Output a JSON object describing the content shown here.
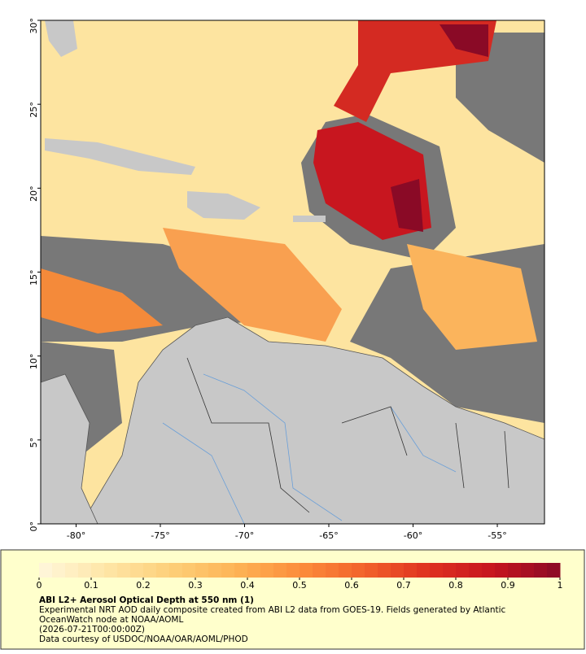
{
  "map": {
    "lon_lim": [
      -82.1,
      -52.2
    ],
    "lat_lim": [
      0,
      30
    ],
    "lon_ticks": [
      {
        "value": -80,
        "label": "-80°"
      },
      {
        "value": -75,
        "label": "-75°"
      },
      {
        "value": -70,
        "label": "-70°"
      },
      {
        "value": -65,
        "label": "-65°"
      },
      {
        "value": -60,
        "label": "-60°"
      },
      {
        "value": -55,
        "label": "-55°"
      }
    ],
    "lat_ticks": [
      {
        "value": 0,
        "label": "0°"
      },
      {
        "value": 5,
        "label": "5°"
      },
      {
        "value": 10,
        "label": "10°"
      },
      {
        "value": 15,
        "label": "15°"
      },
      {
        "value": 20,
        "label": "20°"
      },
      {
        "value": 25,
        "label": "25°"
      },
      {
        "value": 30,
        "label": "30°"
      }
    ]
  },
  "colorbar": {
    "lim": [
      0,
      1
    ],
    "ticks": [
      0,
      0.1,
      0.2,
      0.3,
      0.4,
      0.5,
      0.6,
      0.7,
      0.8,
      0.9,
      1
    ],
    "colormap": [
      "#fff7dc",
      "#fee6a8",
      "#fdd07a",
      "#fdb456",
      "#fc8d3c",
      "#f2622b",
      "#de3020",
      "#c5141f",
      "#8a0a26"
    ]
  },
  "footer": {
    "title": "ABI L2+ Aerosol Optical Depth at 550 nm (1)",
    "description": "Experimental NRT AOD daily composite created from ABI L2 data from GOES-19. Fields generated by Atlantic OceanWatch node at NOAA/AOML",
    "date": "(2026-07-21T00:00:00Z)",
    "credit": "Data courtesy of USDOC/NOAA/OAR/AOML/PHOD"
  }
}
